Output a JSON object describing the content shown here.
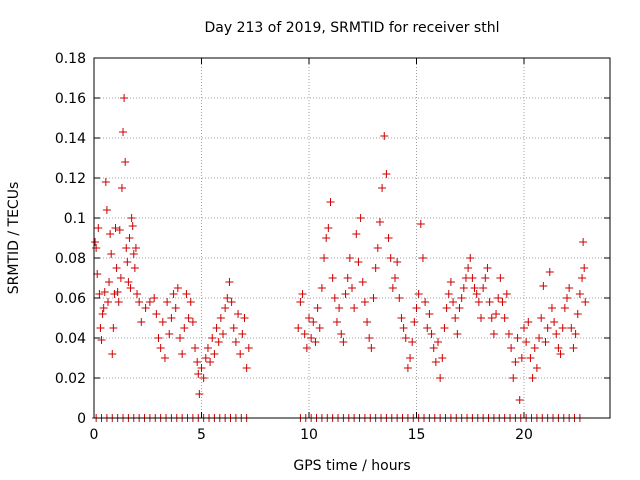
{
  "chart_data": {
    "type": "scatter",
    "title": "Day 213 of 2019, SRMTID for receiver sthl",
    "xlabel": "GPS time / hours",
    "ylabel": "SRMTID / TECUs",
    "xlim": [
      0,
      24
    ],
    "ylim": [
      0,
      0.18
    ],
    "xticks": [
      0,
      5,
      10,
      15,
      20
    ],
    "xtick_labels": [
      "0",
      "5",
      "10",
      "15",
      "20"
    ],
    "yticks": [
      0,
      0.02,
      0.04,
      0.06,
      0.08,
      0.1,
      0.12,
      0.14,
      0.16,
      0.18
    ],
    "ytick_labels": [
      "0",
      "0.02",
      "0.04",
      "0.06",
      "0.08",
      "0.1",
      "0.12",
      "0.14",
      "0.16",
      "0.18"
    ],
    "grid": true,
    "marker": "plus",
    "color": "#cc0000",
    "series": [
      {
        "name": "SRMTID",
        "points": [
          [
            0.05,
            0.088
          ],
          [
            0.1,
            0.085
          ],
          [
            0.15,
            0.072
          ],
          [
            0.2,
            0.095
          ],
          [
            0.25,
            0.062
          ],
          [
            0.3,
            0.045
          ],
          [
            0.35,
            0.039
          ],
          [
            0.4,
            0.052
          ],
          [
            0.45,
            0.055
          ],
          [
            0.5,
            0.063
          ],
          [
            0.55,
            0.118
          ],
          [
            0.6,
            0.104
          ],
          [
            0.65,
            0.058
          ],
          [
            0.7,
            0.068
          ],
          [
            0.75,
            0.092
          ],
          [
            0.8,
            0.082
          ],
          [
            0.85,
            0.032
          ],
          [
            0.9,
            0.045
          ],
          [
            0.95,
            0.062
          ],
          [
            1.0,
            0.095
          ],
          [
            1.05,
            0.075
          ],
          [
            1.1,
            0.063
          ],
          [
            1.15,
            0.058
          ],
          [
            1.2,
            0.094
          ],
          [
            1.25,
            0.07
          ],
          [
            1.3,
            0.115
          ],
          [
            1.35,
            0.143
          ],
          [
            1.4,
            0.16
          ],
          [
            1.45,
            0.128
          ],
          [
            1.5,
            0.085
          ],
          [
            1.55,
            0.078
          ],
          [
            1.6,
            0.068
          ],
          [
            1.65,
            0.09
          ],
          [
            1.7,
            0.065
          ],
          [
            1.75,
            0.1
          ],
          [
            1.8,
            0.096
          ],
          [
            1.85,
            0.082
          ],
          [
            1.9,
            0.075
          ],
          [
            1.95,
            0.085
          ],
          [
            2.0,
            0.062
          ],
          [
            2.1,
            0.058
          ],
          [
            2.2,
            0.048
          ],
          [
            2.4,
            0.055
          ],
          [
            2.6,
            0.058
          ],
          [
            2.8,
            0.06
          ],
          [
            2.9,
            0.052
          ],
          [
            3.0,
            0.04
          ],
          [
            3.1,
            0.035
          ],
          [
            3.2,
            0.048
          ],
          [
            3.3,
            0.03
          ],
          [
            3.4,
            0.058
          ],
          [
            3.5,
            0.042
          ],
          [
            3.6,
            0.05
          ],
          [
            3.7,
            0.062
          ],
          [
            3.8,
            0.055
          ],
          [
            3.9,
            0.065
          ],
          [
            4.0,
            0.04
          ],
          [
            4.1,
            0.032
          ],
          [
            4.2,
            0.045
          ],
          [
            4.3,
            0.062
          ],
          [
            4.4,
            0.05
          ],
          [
            4.5,
            0.058
          ],
          [
            4.6,
            0.048
          ],
          [
            4.7,
            0.035
          ],
          [
            4.8,
            0.028
          ],
          [
            4.85,
            0.022
          ],
          [
            4.9,
            0.012
          ],
          [
            5.0,
            0.025
          ],
          [
            5.1,
            0.02
          ],
          [
            5.2,
            0.03
          ],
          [
            5.3,
            0.035
          ],
          [
            5.4,
            0.028
          ],
          [
            5.5,
            0.04
          ],
          [
            5.6,
            0.032
          ],
          [
            5.7,
            0.045
          ],
          [
            5.8,
            0.038
          ],
          [
            5.9,
            0.05
          ],
          [
            6.0,
            0.042
          ],
          [
            6.1,
            0.055
          ],
          [
            6.2,
            0.06
          ],
          [
            6.3,
            0.068
          ],
          [
            6.4,
            0.058
          ],
          [
            6.5,
            0.045
          ],
          [
            6.6,
            0.038
          ],
          [
            6.7,
            0.052
          ],
          [
            6.8,
            0.032
          ],
          [
            6.9,
            0.042
          ],
          [
            7.0,
            0.05
          ],
          [
            7.1,
            0.025
          ],
          [
            7.2,
            0.035
          ],
          [
            9.5,
            0.045
          ],
          [
            9.6,
            0.058
          ],
          [
            9.7,
            0.062
          ],
          [
            9.8,
            0.042
          ],
          [
            9.9,
            0.035
          ],
          [
            10.0,
            0.05
          ],
          [
            10.1,
            0.04
          ],
          [
            10.2,
            0.048
          ],
          [
            10.3,
            0.038
          ],
          [
            10.4,
            0.055
          ],
          [
            10.5,
            0.045
          ],
          [
            10.6,
            0.065
          ],
          [
            10.7,
            0.08
          ],
          [
            10.8,
            0.09
          ],
          [
            10.9,
            0.095
          ],
          [
            11.0,
            0.108
          ],
          [
            11.1,
            0.07
          ],
          [
            11.2,
            0.06
          ],
          [
            11.3,
            0.048
          ],
          [
            11.4,
            0.055
          ],
          [
            11.5,
            0.042
          ],
          [
            11.6,
            0.038
          ],
          [
            11.7,
            0.062
          ],
          [
            11.8,
            0.07
          ],
          [
            11.9,
            0.08
          ],
          [
            12.0,
            0.065
          ],
          [
            12.1,
            0.055
          ],
          [
            12.2,
            0.092
          ],
          [
            12.3,
            0.078
          ],
          [
            12.4,
            0.1
          ],
          [
            12.5,
            0.068
          ],
          [
            12.6,
            0.058
          ],
          [
            12.7,
            0.048
          ],
          [
            12.8,
            0.04
          ],
          [
            12.9,
            0.035
          ],
          [
            13.0,
            0.06
          ],
          [
            13.1,
            0.075
          ],
          [
            13.2,
            0.085
          ],
          [
            13.3,
            0.098
          ],
          [
            13.4,
            0.115
          ],
          [
            13.5,
            0.141
          ],
          [
            13.6,
            0.122
          ],
          [
            13.7,
            0.09
          ],
          [
            13.8,
            0.08
          ],
          [
            13.9,
            0.065
          ],
          [
            14.0,
            0.07
          ],
          [
            14.1,
            0.078
          ],
          [
            14.2,
            0.06
          ],
          [
            14.3,
            0.05
          ],
          [
            14.4,
            0.045
          ],
          [
            14.5,
            0.04
          ],
          [
            14.6,
            0.025
          ],
          [
            14.7,
            0.03
          ],
          [
            14.8,
            0.038
          ],
          [
            14.9,
            0.048
          ],
          [
            15.0,
            0.055
          ],
          [
            15.1,
            0.062
          ],
          [
            15.2,
            0.097
          ],
          [
            15.3,
            0.08
          ],
          [
            15.4,
            0.058
          ],
          [
            15.5,
            0.045
          ],
          [
            15.6,
            0.052
          ],
          [
            15.7,
            0.042
          ],
          [
            15.8,
            0.035
          ],
          [
            15.9,
            0.028
          ],
          [
            16.0,
            0.038
          ],
          [
            16.1,
            0.02
          ],
          [
            16.2,
            0.03
          ],
          [
            16.3,
            0.045
          ],
          [
            16.4,
            0.055
          ],
          [
            16.5,
            0.062
          ],
          [
            16.6,
            0.068
          ],
          [
            16.7,
            0.058
          ],
          [
            16.8,
            0.05
          ],
          [
            16.9,
            0.042
          ],
          [
            17.0,
            0.055
          ],
          [
            17.1,
            0.06
          ],
          [
            17.2,
            0.065
          ],
          [
            17.3,
            0.07
          ],
          [
            17.4,
            0.075
          ],
          [
            17.5,
            0.08
          ],
          [
            17.6,
            0.07
          ],
          [
            17.7,
            0.065
          ],
          [
            17.8,
            0.062
          ],
          [
            17.9,
            0.058
          ],
          [
            18.0,
            0.05
          ],
          [
            18.1,
            0.065
          ],
          [
            18.2,
            0.07
          ],
          [
            18.3,
            0.075
          ],
          [
            18.4,
            0.058
          ],
          [
            18.5,
            0.05
          ],
          [
            18.6,
            0.042
          ],
          [
            18.7,
            0.052
          ],
          [
            18.8,
            0.06
          ],
          [
            18.9,
            0.07
          ],
          [
            19.0,
            0.058
          ],
          [
            19.1,
            0.05
          ],
          [
            19.2,
            0.062
          ],
          [
            19.3,
            0.042
          ],
          [
            19.4,
            0.035
          ],
          [
            19.5,
            0.02
          ],
          [
            19.6,
            0.028
          ],
          [
            19.7,
            0.04
          ],
          [
            19.8,
            0.009
          ],
          [
            19.9,
            0.03
          ],
          [
            20.0,
            0.045
          ],
          [
            20.1,
            0.038
          ],
          [
            20.2,
            0.048
          ],
          [
            20.3,
            0.03
          ],
          [
            20.4,
            0.02
          ],
          [
            20.5,
            0.035
          ],
          [
            20.6,
            0.025
          ],
          [
            20.7,
            0.04
          ],
          [
            20.8,
            0.05
          ],
          [
            20.9,
            0.066
          ],
          [
            21.0,
            0.038
          ],
          [
            21.1,
            0.045
          ],
          [
            21.2,
            0.073
          ],
          [
            21.3,
            0.055
          ],
          [
            21.4,
            0.048
          ],
          [
            21.5,
            0.042
          ],
          [
            21.6,
            0.035
          ],
          [
            21.7,
            0.032
          ],
          [
            21.8,
            0.045
          ],
          [
            21.9,
            0.055
          ],
          [
            22.0,
            0.06
          ],
          [
            22.1,
            0.065
          ],
          [
            22.2,
            0.045
          ],
          [
            22.3,
            0.035
          ],
          [
            22.4,
            0.042
          ],
          [
            22.5,
            0.052
          ],
          [
            22.6,
            0.062
          ],
          [
            22.7,
            0.07
          ],
          [
            22.75,
            0.088
          ],
          [
            22.8,
            0.075
          ],
          [
            22.85,
            0.058
          ]
        ],
        "zero_runs": [
          [
            0.1,
            7.2
          ],
          [
            9.6,
            22.8
          ]
        ],
        "zero_step": 0.25
      }
    ]
  }
}
